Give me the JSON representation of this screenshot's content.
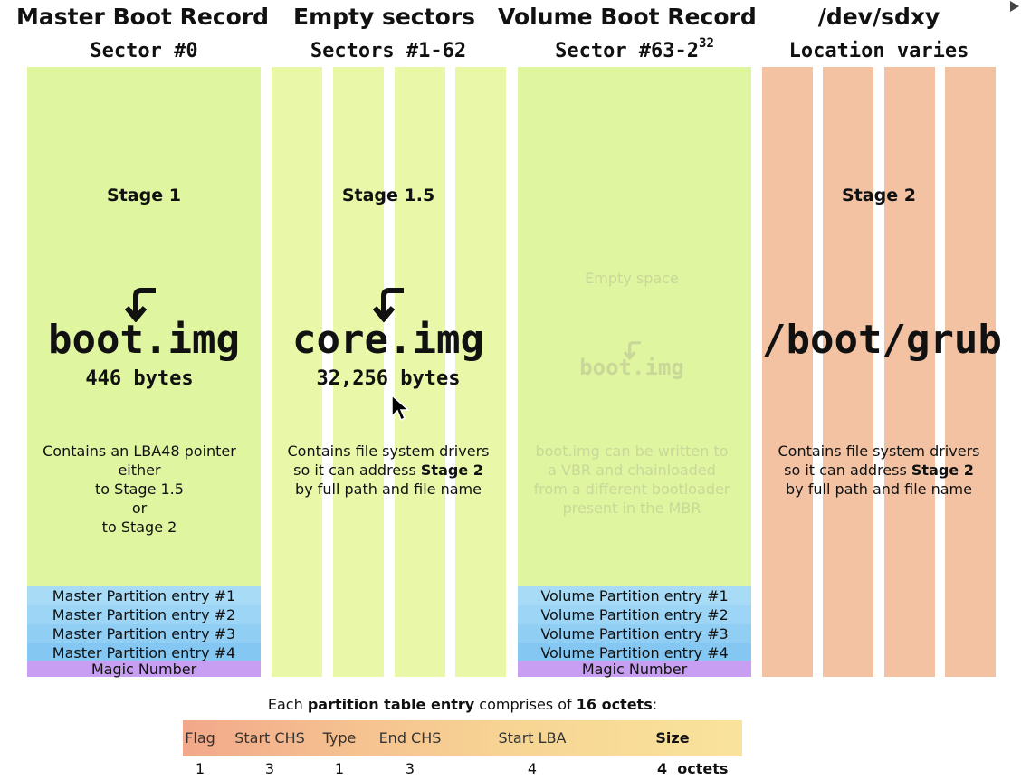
{
  "headers": [
    {
      "title": "Master Boot Record",
      "subtitle": "Sector #0"
    },
    {
      "title": "Empty sectors",
      "subtitle": "Sectors #1-62"
    },
    {
      "title": "Volume Boot Record",
      "subtitle": "Sector #63-2",
      "subtitle_sup": "32"
    },
    {
      "title": "/dev/sdxy",
      "subtitle": "Location varies"
    }
  ],
  "mbr": {
    "stage": "Stage 1",
    "image": "boot.img",
    "size": "446 bytes",
    "desc": [
      "Contains an LBA48 pointer",
      "either",
      "to Stage 1.5",
      "or",
      "to Stage 2"
    ],
    "entries": [
      "Master Partition entry #1",
      "Master Partition entry #2",
      "Master Partition entry #3",
      "Master Partition entry #4"
    ],
    "magic": "Magic Number"
  },
  "empty": {
    "stage": "Stage 1.5",
    "image": "core.img",
    "size": "32,256 bytes",
    "desc_line1": "Contains file system drivers",
    "desc_line2_pre": "so it can address ",
    "desc_line2_bold": "Stage 2",
    "desc_line3": "by full path and file name"
  },
  "vbr": {
    "empty_label": "Empty space",
    "image": "boot.img",
    "desc": [
      "boot.img can be written to",
      "a VBR and chainloaded",
      "from a different bootloader",
      "present in the MBR"
    ],
    "entries": [
      "Volume Partition entry #1",
      "Volume Partition entry #2",
      "Volume Partition entry #3",
      "Volume Partition entry #4"
    ],
    "magic": "Magic Number"
  },
  "sdxy": {
    "stage": "Stage 2",
    "image": "/boot/grub",
    "desc_line1": "Contains file system drivers",
    "desc_line2_pre": "so it can address ",
    "desc_line2_bold": "Stage 2",
    "desc_line3": "by full path and file name"
  },
  "partition_table": {
    "caption_pre": "Each ",
    "caption_bold1": "partition table entry",
    "caption_mid": " comprises of ",
    "caption_bold2": "16 octets",
    "caption_post": ":",
    "fields": [
      "Flag",
      "Start CHS",
      "Type",
      "End CHS",
      "Start LBA",
      "Size"
    ],
    "sizes": [
      "1",
      "3",
      "1",
      "3",
      "4",
      "4"
    ],
    "unit": "octets"
  },
  "colors": {
    "mbr_green": "#dff5a0",
    "empty_green": "#e8f8a8",
    "salmon": "#f2c2a2",
    "partition_blue": "#8ecbf2",
    "magic_purple": "#c89ef2"
  }
}
